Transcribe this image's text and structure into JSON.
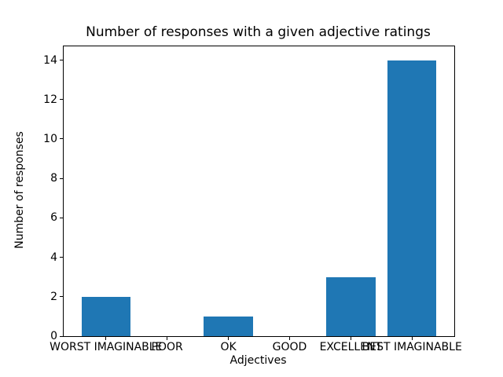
{
  "chart_data": {
    "type": "bar",
    "title": "Number of responses with a given adjective ratings",
    "xlabel": "Adjectives",
    "ylabel": "Number of responses",
    "categories": [
      "WORST IMAGINABLE",
      "POOR",
      "OK",
      "GOOD",
      "EXCELLENT",
      "BEST IMAGINABLE"
    ],
    "values": [
      2,
      0,
      1,
      0,
      3,
      14
    ],
    "yticks": [
      0,
      2,
      4,
      6,
      8,
      10,
      12,
      14
    ],
    "ylim": [
      0,
      14.7
    ],
    "xlim": [
      -0.69,
      5.69
    ],
    "bar_width_units": 0.8,
    "bar_color": "#1f77b4",
    "spine_color": "#000000",
    "text_color": "#000000",
    "background_color": "#ffffff",
    "grid": false,
    "legend": "none"
  }
}
